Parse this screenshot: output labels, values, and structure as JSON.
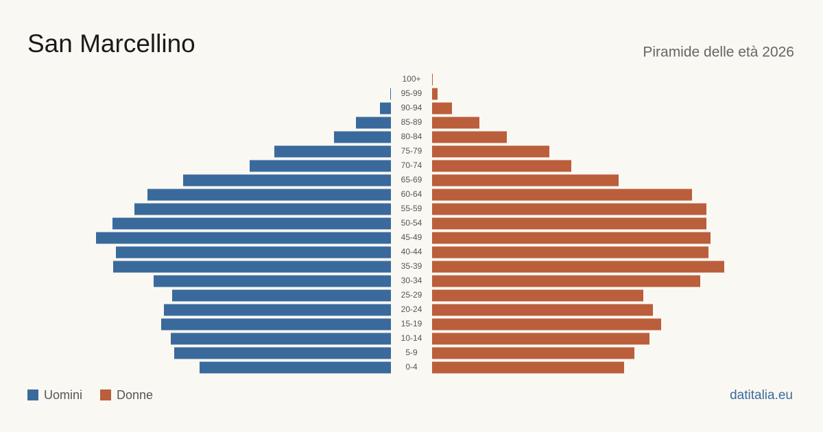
{
  "chart_data": {
    "type": "pyramid",
    "title": "San Marcellino",
    "subtitle": "Piramide delle età 2026",
    "source": "datitalia.eu",
    "categories": [
      "100+",
      "95-99",
      "90-94",
      "85-89",
      "80-84",
      "75-79",
      "70-74",
      "65-69",
      "60-64",
      "55-59",
      "50-54",
      "45-49",
      "40-44",
      "35-39",
      "30-34",
      "25-29",
      "20-24",
      "15-19",
      "10-14",
      "5-9",
      "0-4"
    ],
    "series": [
      {
        "name": "Uomini",
        "color": "#3a6a9c",
        "values": [
          0,
          1,
          16,
          51,
          83,
          170,
          206,
          303,
          355,
          374,
          406,
          430,
          401,
          405,
          346,
          319,
          331,
          335,
          321,
          316,
          279
        ]
      },
      {
        "name": "Donne",
        "color": "#bb5e3c",
        "values": [
          1,
          8,
          29,
          69,
          109,
          171,
          203,
          272,
          379,
          400,
          400,
          406,
          403,
          426,
          391,
          308,
          322,
          334,
          317,
          295,
          280
        ]
      }
    ]
  }
}
